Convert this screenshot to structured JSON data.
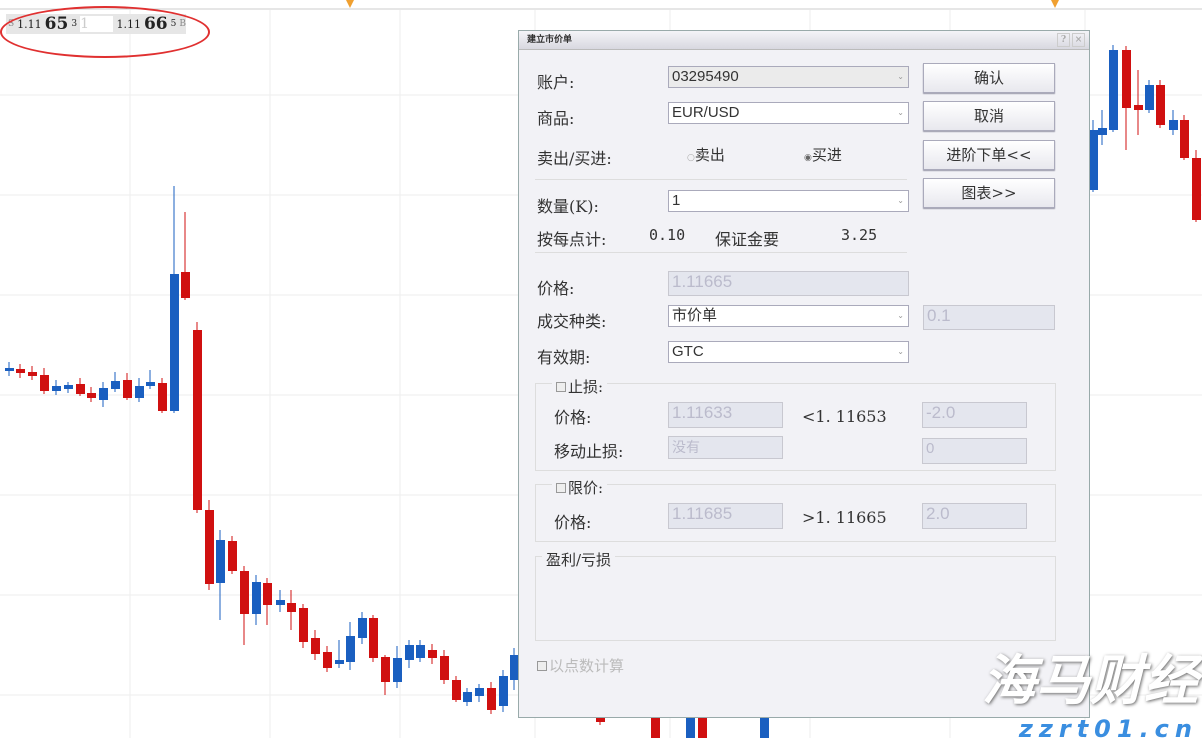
{
  "quote": {
    "sell_prefix": "1.11",
    "sell_big": "65",
    "sell_sup": "3",
    "mid": "1",
    "buy_prefix": "1.11",
    "buy_big": "66",
    "buy_sup": "5",
    "s_label": "S",
    "b_label": "B"
  },
  "dialog": {
    "title": "建立市价单",
    "account_label": "账户:",
    "account_value": "03295490",
    "symbol_label": "商品:",
    "symbol_value": "EUR/USD",
    "side_label": "卖出/买进:",
    "sell_label": "卖出",
    "buy_label": "买进",
    "selected_side": "buy",
    "qty_label": "数量(K):",
    "qty_value": "1",
    "per_pip_label": "按每点计:",
    "per_pip_value": "0.10",
    "margin_label": "保证金要",
    "margin_value": "3.25",
    "price_label": "价格:",
    "price_value": "1.11665",
    "order_type_label": "成交种类:",
    "order_type_value": "市价单",
    "order_type_extra": "0.1",
    "validity_label": "有效期:",
    "validity_value": "GTC",
    "stop": {
      "label": "止损:",
      "price_label": "价格:",
      "price_value": "1.11633",
      "hint": "<1. 11653",
      "pips": "-2.0",
      "trail_label": "移动止损:",
      "trail_value": "没有",
      "trail_pips": "0"
    },
    "limit": {
      "label": "限价:",
      "price_label": "价格:",
      "price_value": "1.11685",
      "hint": ">1. 11665",
      "pips": "2.0"
    },
    "pl_label": "盈利/亏损",
    "pips_calc_label": "以点数计算",
    "buttons": {
      "confirm": "确认",
      "cancel": "取消",
      "advanced": "进阶下单<<",
      "chart": "图表>>"
    }
  },
  "watermark": {
    "cn": "海马财经",
    "url": "zzrt01.cn"
  },
  "colors": {
    "up": "#1a5fc0",
    "down": "#d01010"
  }
}
